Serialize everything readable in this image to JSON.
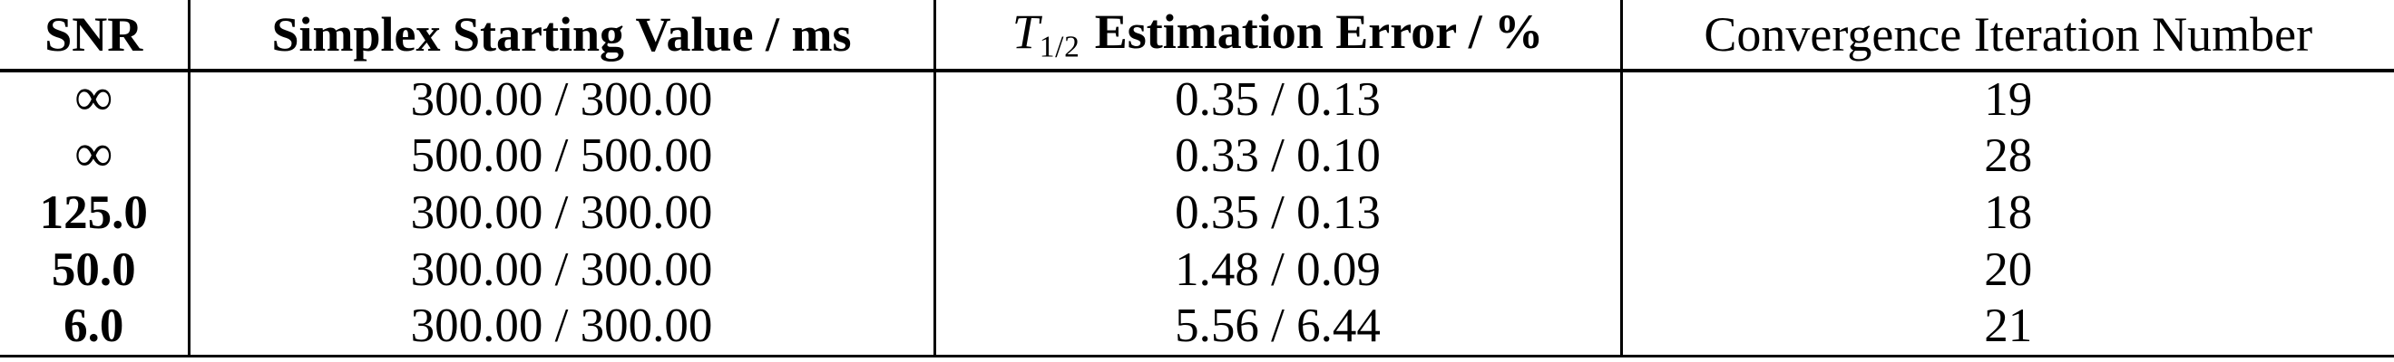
{
  "colors": {
    "text": "#000000",
    "background": "#ffffff",
    "rule": "#000000"
  },
  "header": {
    "snr": "SNR",
    "simplex": "Simplex Starting Value / ms",
    "t_symbol": "T",
    "t_subscript": "1/2",
    "error_rest": "Estimation Error / %",
    "convergence": "Convergence Iteration Number"
  },
  "rows": [
    {
      "snr": "∞",
      "start": "300.00 / 300.00",
      "error": "0.35 / 0.13",
      "iterations": "19"
    },
    {
      "snr": "∞",
      "start": "500.00 / 500.00",
      "error": "0.33 / 0.10",
      "iterations": "28"
    },
    {
      "snr": "125.0",
      "start": "300.00 / 300.00",
      "error": "0.35 / 0.13",
      "iterations": "18"
    },
    {
      "snr": "50.0",
      "start": "300.00 / 300.00",
      "error": "1.48 / 0.09",
      "iterations": "20"
    },
    {
      "snr": "6.0",
      "start": "300.00 / 300.00",
      "error": "5.56 / 6.44",
      "iterations": "21"
    }
  ]
}
